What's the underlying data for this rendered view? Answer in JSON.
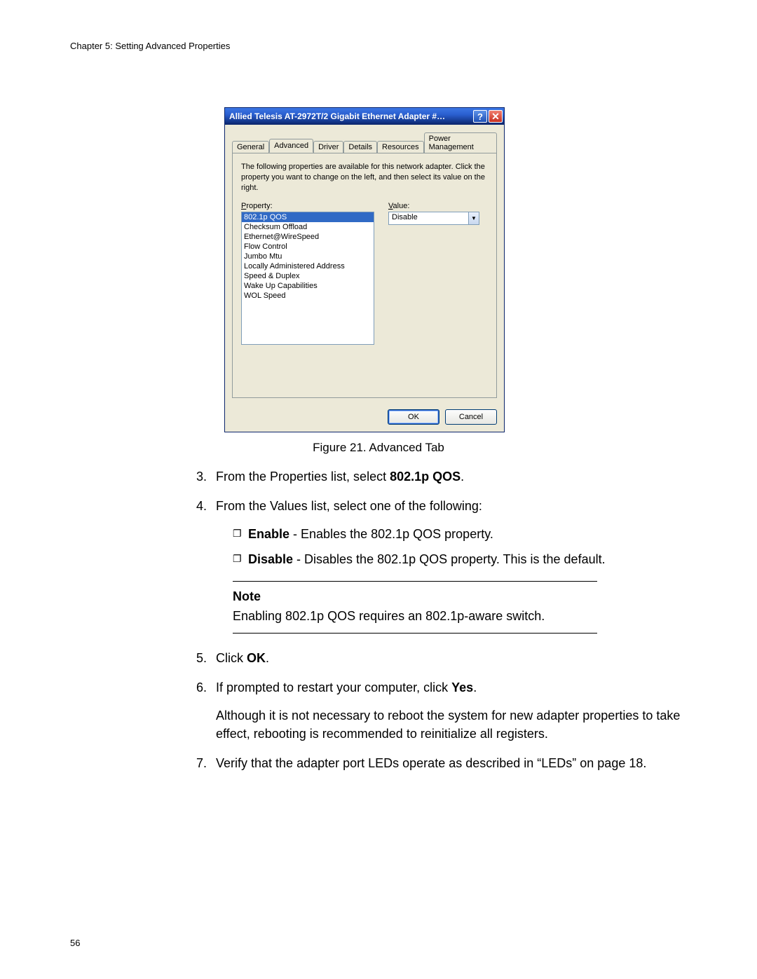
{
  "chapter_header": "Chapter 5: Setting Advanced Properties",
  "page_number": "56",
  "dialog": {
    "title": "Allied Telesis AT-2972T/2 Gigabit Ethernet Adapter #…",
    "tabs": [
      "General",
      "Advanced",
      "Driver",
      "Details",
      "Resources",
      "Power Management"
    ],
    "active_tab": "Advanced",
    "instructions": "The following properties are available for this network adapter. Click the property you want to change on the left, and then select its value on the right.",
    "property_label_u": "P",
    "property_label_rest": "roperty:",
    "value_label_u": "V",
    "value_label_rest": "alue:",
    "properties": [
      "802.1p QOS",
      "Checksum Offload",
      "Ethernet@WireSpeed",
      "Flow Control",
      "Jumbo Mtu",
      "Locally Administered Address",
      "Speed & Duplex",
      "Wake Up Capabilities",
      "WOL Speed"
    ],
    "selected_property_index": 0,
    "value_selected": "Disable",
    "ok_label": "OK",
    "cancel_label": "Cancel"
  },
  "figure_caption": "Figure 21. Advanced Tab",
  "step3_num": "3.",
  "step3_prefix": "From the Properties list, select ",
  "step3_bold": "802.1p QOS",
  "step3_suffix": ".",
  "step4_num": "4.",
  "step4_text": "From the Values list, select one of the following:",
  "step4_a_bold": "Enable",
  "step4_a_rest": " - Enables the 802.1p QOS property.",
  "step4_b_bold": "Disable",
  "step4_b_rest": " - Disables the 802.1p QOS property. This is the default.",
  "note_title": "Note",
  "note_body": "Enabling 802.1p QOS requires an 802.1p-aware switch.",
  "step5_num": "5.",
  "step5_prefix": "Click ",
  "step5_bold": "OK",
  "step5_suffix": ".",
  "step6_num": "6.",
  "step6_prefix": "If prompted to restart your computer, click ",
  "step6_bold": "Yes",
  "step6_suffix": ".",
  "step6_para": "Although it is not necessary to reboot the system for new adapter properties to take effect, rebooting is recommended to reinitialize all registers.",
  "step7_num": "7.",
  "step7_text": "Verify that the adapter port LEDs operate as described in “LEDs” on page 18.",
  "bullet_glyph": "❐"
}
